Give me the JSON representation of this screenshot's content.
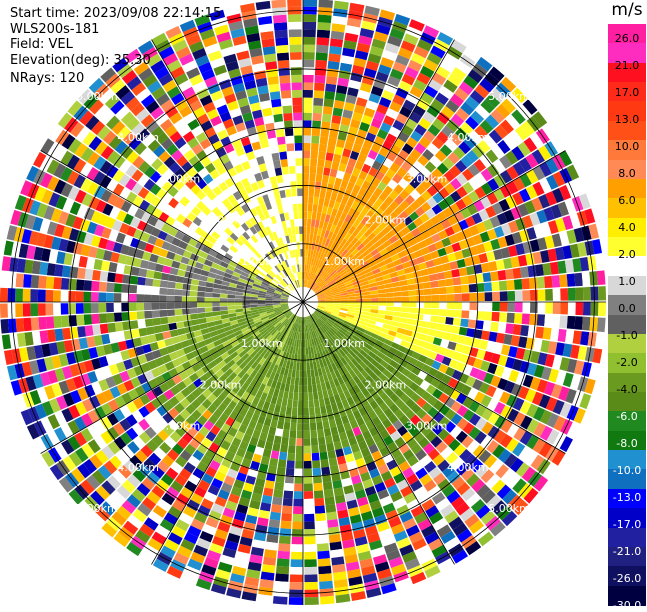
{
  "header": {
    "start_time": "Start time: 2023/09/08 22:14:15",
    "instrument": "WLS200s-181",
    "field": "Field: VEL",
    "elevation": "Elevation(deg): 35.30",
    "nrays": "NRays: 120"
  },
  "chart_data": {
    "type": "ppi",
    "field": "VEL",
    "nrays": 120,
    "elevation_deg": 35.3,
    "units": "m/s",
    "range_rings_km": [
      1.0,
      2.0,
      3.0,
      4.0,
      5.0
    ],
    "ring_labels": [
      "1.00km",
      "2.00km",
      "3.00km",
      "4.00km",
      "5.00km"
    ],
    "max_range_km": 5.2,
    "spokes_deg": [
      0,
      30,
      60,
      90,
      120,
      150,
      180,
      210,
      240,
      270,
      300,
      330
    ],
    "colorbar": {
      "title": "m/s",
      "ticks": [
        {
          "value": 26.0,
          "label": "26.0"
        },
        {
          "value": 21.0,
          "label": "21.0"
        },
        {
          "value": 17.0,
          "label": "17.0"
        },
        {
          "value": 13.0,
          "label": "13.0"
        },
        {
          "value": 10.0,
          "label": "10.0"
        },
        {
          "value": 8.0,
          "label": "8.0"
        },
        {
          "value": 6.0,
          "label": "6.0"
        },
        {
          "value": 4.0,
          "label": "4.0"
        },
        {
          "value": 2.0,
          "label": "2.0"
        },
        {
          "value": 1.0,
          "label": "1.0"
        },
        {
          "value": 0.0,
          "label": "0.0"
        },
        {
          "value": -1.0,
          "label": "-1.0"
        },
        {
          "value": -2.0,
          "label": "-2.0"
        },
        {
          "value": -4.0,
          "label": "-4.0"
        },
        {
          "value": -6.0,
          "label": "-6.0"
        },
        {
          "value": -8.0,
          "label": "-8.0"
        },
        {
          "value": -10.0,
          "label": "-10.0"
        },
        {
          "value": -13.0,
          "label": "-13.0"
        },
        {
          "value": -17.0,
          "label": "-17.0"
        },
        {
          "value": -21.0,
          "label": "-21.0"
        },
        {
          "value": -26.0,
          "label": "-26.0"
        },
        {
          "value": -30.0,
          "label": "-30.0"
        }
      ],
      "colors": [
        "#ff1fa0",
        "#ff2dbf",
        "#ff1020",
        "#ff2a1a",
        "#ff3a12",
        "#ff5018",
        "#ff7a3a",
        "#ff8a55",
        "#ffa000",
        "#ffc000",
        "#ffee00",
        "#ffff30",
        "#ffffff",
        "#d8d8d8",
        "#808080",
        "#606060",
        "#b0d040",
        "#90c030",
        "#6a9a20",
        "#5a8a18",
        "#208a20",
        "#107a10",
        "#2090d0",
        "#1070c0",
        "#0000ff",
        "#0000c8",
        "#2020a0",
        "#202080",
        "#101060",
        "#000040"
      ],
      "text_colors": [
        "#000000",
        "#000000",
        "#000000",
        "#000000",
        "#000000",
        "#000000",
        "#000000",
        "#000000",
        "#000000",
        "#000000",
        "#000000",
        "#000000",
        "#000000",
        "#000000",
        "#ffffff",
        "#ffffff",
        "#ffffff",
        "#ffffff",
        "#ffffff",
        "#ffffff",
        "#ffffff",
        "#ffffff"
      ]
    },
    "velocity_pattern": {
      "description_sectors_deg": [
        {
          "from": 300,
          "to": 360,
          "value": 2.0
        },
        {
          "from": 0,
          "to": 90,
          "value": 7.0
        },
        {
          "from": 90,
          "to": 115,
          "value": 3.0
        },
        {
          "from": 115,
          "to": 200,
          "value": -4.0
        },
        {
          "from": 200,
          "to": 265,
          "value": -2.5
        },
        {
          "from": 265,
          "to": 300,
          "value": -0.5
        }
      ],
      "clean_range_km": 3.0
    }
  }
}
